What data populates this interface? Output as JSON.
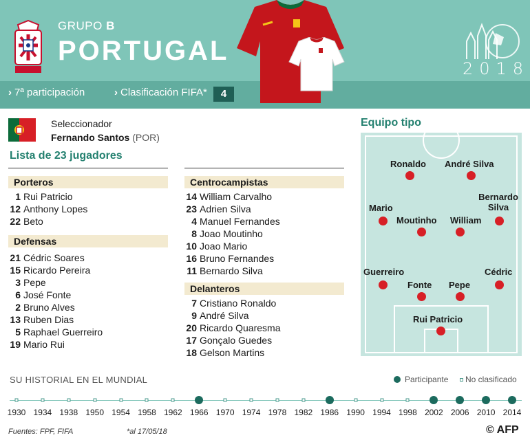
{
  "header": {
    "group_prefix": "GRUPO",
    "group_letter": "B",
    "country": "PORTUGAL",
    "year": "2018",
    "participation": "7ª participación",
    "fifa_label": "Clasificación FIFA*",
    "fifa_rank": "4"
  },
  "coach": {
    "label": "Seleccionador",
    "name": "Fernando Santos",
    "nationality": "(POR)"
  },
  "squad": {
    "title": "Lista de 23 jugadores",
    "sections": [
      {
        "name": "Porteros",
        "players": [
          {
            "num": "1",
            "name": "Rui Patricio"
          },
          {
            "num": "12",
            "name": "Anthony Lopes"
          },
          {
            "num": "22",
            "name": "Beto"
          }
        ]
      },
      {
        "name": "Defensas",
        "players": [
          {
            "num": "21",
            "name": "Cédric Soares"
          },
          {
            "num": "15",
            "name": "Ricardo Pereira"
          },
          {
            "num": "3",
            "name": "Pepe"
          },
          {
            "num": "6",
            "name": "José Fonte"
          },
          {
            "num": "2",
            "name": "Bruno Alves"
          },
          {
            "num": "13",
            "name": "Ruben Dias"
          },
          {
            "num": "5",
            "name": "Raphael Guerreiro"
          },
          {
            "num": "19",
            "name": "Mario Rui"
          }
        ]
      },
      {
        "name": "Centrocampistas",
        "players": [
          {
            "num": "14",
            "name": "William Carvalho"
          },
          {
            "num": "23",
            "name": "Adrien Silva"
          },
          {
            "num": "4",
            "name": "Manuel Fernandes"
          },
          {
            "num": "8",
            "name": "Joao Moutinho"
          },
          {
            "num": "10",
            "name": "Joao Mario"
          },
          {
            "num": "16",
            "name": "Bruno Fernandes"
          },
          {
            "num": "11",
            "name": "Bernardo Silva"
          }
        ]
      },
      {
        "name": "Delanteros",
        "players": [
          {
            "num": "7",
            "name": "Cristiano Ronaldo"
          },
          {
            "num": "9",
            "name": "André Silva"
          },
          {
            "num": "20",
            "name": "Ricardo Quaresma"
          },
          {
            "num": "17",
            "name": "Gonçalo Guedes"
          },
          {
            "num": "18",
            "name": "Gelson Martins"
          }
        ]
      }
    ]
  },
  "lineup": {
    "title": "Equipo tipo",
    "players": [
      "Ronaldo",
      "André Silva",
      "Mario",
      "Moutinho",
      "William",
      "Bernardo Silva",
      "Guerreiro",
      "Fonte",
      "Pepe",
      "Cédric",
      "Rui Patricio"
    ]
  },
  "history": {
    "title": "SU HISTORIAL EN EL MUNDIAL",
    "legend_participant": "Participante",
    "legend_not": "No clasificado",
    "years": [
      "1930",
      "1934",
      "1938",
      "1950",
      "1954",
      "1958",
      "1962",
      "1966",
      "1970",
      "1974",
      "1978",
      "1982",
      "1986",
      "1990",
      "1994",
      "1998",
      "2002",
      "2006",
      "2010",
      "2014"
    ],
    "participated": [
      false,
      false,
      false,
      false,
      false,
      false,
      false,
      true,
      false,
      false,
      false,
      false,
      true,
      false,
      false,
      false,
      true,
      true,
      true,
      true
    ]
  },
  "footer": {
    "sources": "Fuentes: FPF, FIFA",
    "note": "*al 17/05/18",
    "credit": "© AFP"
  },
  "colors": {
    "header": "#7fc5b8",
    "subbar": "#62ad9f",
    "accent": "#23806f",
    "dot": "#d71f26",
    "pitch": "#c6e5df"
  }
}
